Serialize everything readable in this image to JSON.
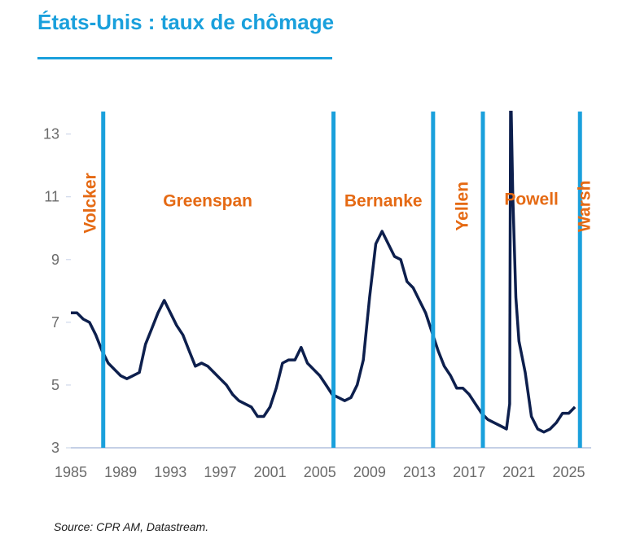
{
  "title": "États-Unis : taux de chômage",
  "source": "Source: CPR AM, Datastream.",
  "colors": {
    "title": "#1aa0dc",
    "line": "#0d1f4d",
    "divider": "#1aa0dc",
    "era_label": "#e56a14",
    "axis": "#c5d0e6"
  },
  "chart_data": {
    "type": "line",
    "title": "États-Unis : taux de chômage",
    "xlabel": "",
    "ylabel": "",
    "xlim": [
      1985,
      2026.8
    ],
    "ylim": [
      3,
      13.9
    ],
    "x_ticks": [
      1985,
      1989,
      1993,
      1997,
      2001,
      2005,
      2009,
      2013,
      2017,
      2021,
      2025
    ],
    "y_ticks": [
      3,
      5,
      7,
      9,
      11,
      13
    ],
    "grid": false,
    "series": [
      {
        "name": "",
        "x": [
          1985,
          1985.5,
          1986,
          1986.5,
          1987,
          1987.5,
          1988,
          1988.5,
          1989,
          1989.5,
          1990,
          1990.5,
          1991,
          1991.5,
          1992,
          1992.5,
          1993,
          1993.5,
          1994,
          1994.5,
          1995,
          1995.5,
          1996,
          1996.5,
          1997,
          1997.5,
          1998,
          1998.5,
          1999,
          1999.5,
          2000,
          2000.5,
          2001,
          2001.5,
          2002,
          2002.5,
          2003,
          2003.5,
          2004,
          2004.5,
          2005,
          2005.5,
          2006,
          2006.5,
          2007,
          2007.5,
          2008,
          2008.5,
          2009,
          2009.5,
          2010,
          2010.5,
          2011,
          2011.5,
          2012,
          2012.5,
          2013,
          2013.5,
          2014,
          2014.5,
          2015,
          2015.5,
          2016,
          2016.5,
          2017,
          2017.5,
          2018,
          2018.5,
          2019,
          2019.5,
          2020,
          2020.25,
          2020.33,
          2020.5,
          2020.75,
          2021,
          2021.5,
          2022,
          2022.5,
          2023,
          2023.5,
          2024,
          2024.5,
          2025,
          2025.5
        ],
        "values": [
          7.3,
          7.3,
          7.1,
          7.0,
          6.6,
          6.1,
          5.7,
          5.5,
          5.3,
          5.2,
          5.3,
          5.4,
          6.3,
          6.8,
          7.3,
          7.7,
          7.3,
          6.9,
          6.6,
          6.1,
          5.6,
          5.7,
          5.6,
          5.4,
          5.2,
          5.0,
          4.7,
          4.5,
          4.4,
          4.3,
          4.0,
          4.0,
          4.3,
          4.9,
          5.7,
          5.8,
          5.8,
          6.2,
          5.7,
          5.5,
          5.3,
          5.0,
          4.7,
          4.6,
          4.5,
          4.6,
          5.0,
          5.8,
          7.8,
          9.5,
          9.9,
          9.5,
          9.1,
          9.0,
          8.3,
          8.1,
          7.7,
          7.3,
          6.7,
          6.1,
          5.6,
          5.3,
          4.9,
          4.9,
          4.7,
          4.4,
          4.1,
          3.9,
          3.8,
          3.7,
          3.6,
          4.4,
          14.7,
          11.1,
          7.8,
          6.4,
          5.4,
          4.0,
          3.6,
          3.5,
          3.6,
          3.8,
          4.1,
          4.1,
          4.3
        ]
      }
    ],
    "vertical_lines": [
      1987.6,
      2006.1,
      2014.1,
      2018.1,
      2025.9
    ],
    "era_labels": [
      {
        "text": "Volcker",
        "x": 1987.0,
        "y": 10.8,
        "rotated": true
      },
      {
        "text": "Greenspan",
        "x": 1996.0,
        "y": 10.7,
        "rotated": false
      },
      {
        "text": "Bernanke",
        "x": 2010.1,
        "y": 10.7,
        "rotated": false
      },
      {
        "text": "Yellen",
        "x": 2016.9,
        "y": 10.7,
        "rotated": true
      },
      {
        "text": "Powell",
        "x": 2022.0,
        "y": 10.75,
        "rotated": false
      },
      {
        "text": "Warsh",
        "x": 2026.7,
        "y": 10.7,
        "rotated": true
      }
    ]
  }
}
